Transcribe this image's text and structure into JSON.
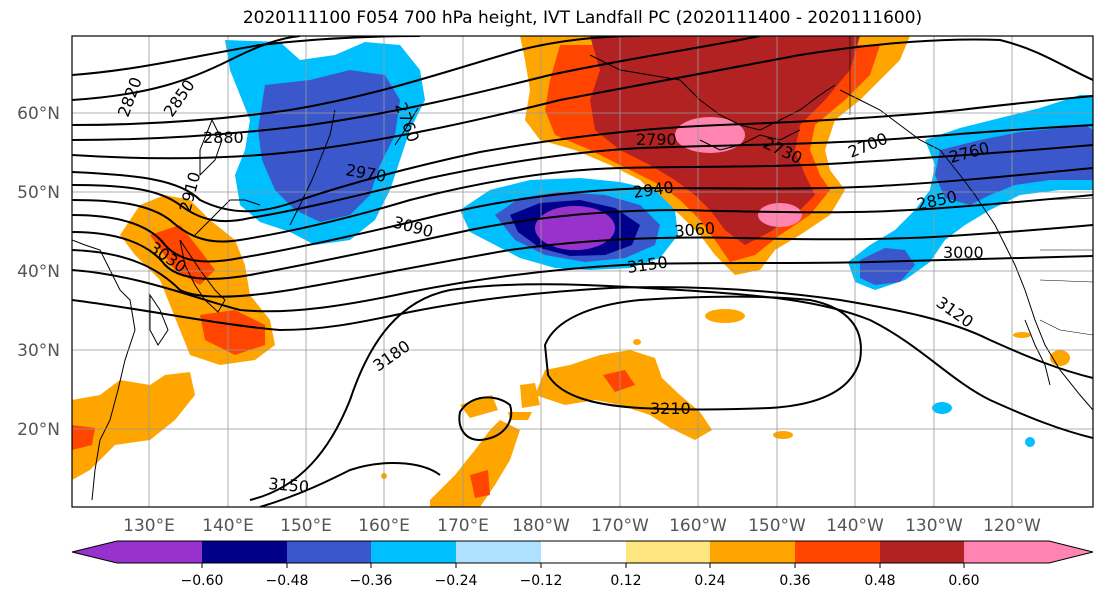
{
  "title": "2020111100 F054 700 hPa height, IVT Landfall PC (2020111400 - 2020111600)",
  "lat_labels": [
    "60°N",
    "50°N",
    "40°N",
    "30°N",
    "20°N"
  ],
  "lon_labels": [
    "130°E",
    "140°E",
    "150°E",
    "160°E",
    "170°E",
    "180°W",
    "170°W",
    "160°W",
    "150°W",
    "140°W",
    "130°W",
    "120°W"
  ],
  "contour_labels": [
    "2820",
    "2850",
    "2880",
    "2910",
    "3030",
    "2970",
    "3090",
    "2940",
    "3060",
    "3150",
    "2790",
    "2730",
    "2700",
    "2760",
    "2850",
    "3000",
    "3120",
    "3180",
    "3210",
    "3150",
    "2760"
  ],
  "colorbar": {
    "ticks": [
      "−0.60",
      "−0.48",
      "−0.36",
      "−0.24",
      "−0.12",
      "0.12",
      "0.24",
      "0.36",
      "0.48",
      "0.60"
    ],
    "colors": [
      "#9932cc",
      "#00008b",
      "#3a58cc",
      "#00bfff",
      "#b0e0ff",
      "#ffffff",
      "#ffe680",
      "#ffa500",
      "#ff4500",
      "#b22222",
      "#ff85b0"
    ]
  }
}
